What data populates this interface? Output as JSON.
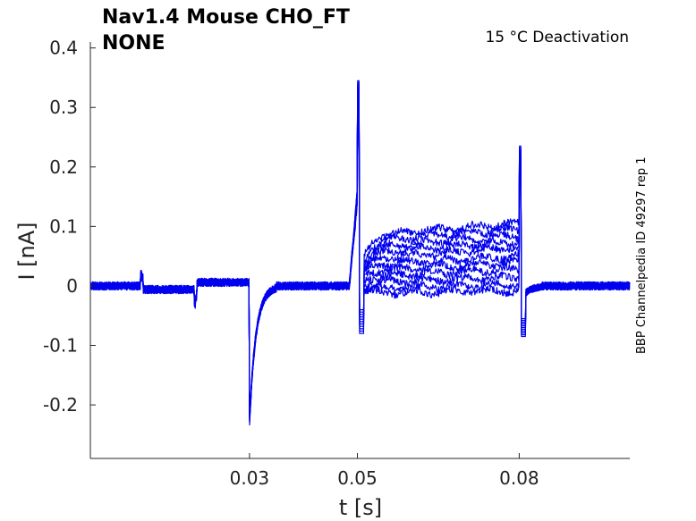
{
  "chart_data": {
    "type": "line",
    "title_line1": "Nav1.4  Mouse  CHO_FT",
    "title_line2": "NONE",
    "annotation": "15 °C  Deactivation",
    "side_label": "BBP Channelpedia ID 49297 rep 1",
    "xlabel": "t [s]",
    "ylabel": "I [nA]",
    "xlim": [
      0.0005,
      0.1005
    ],
    "ylim": [
      -0.29,
      0.41
    ],
    "x_ticks": [
      0.03,
      0.05,
      0.08
    ],
    "x_tick_labels": [
      "0.03",
      "0.05",
      "0.08"
    ],
    "y_ticks": [
      -0.2,
      -0.1,
      0,
      0.1,
      0.2,
      0.3,
      0.4
    ],
    "y_tick_labels": [
      "-0.2",
      "-0.1",
      "0",
      "0.1",
      "0.2",
      "0.3",
      "0.4"
    ],
    "grid": false,
    "line_color": "#0000ee",
    "protocol": {
      "baseline": 0.0,
      "transient_1": {
        "x": 0.01,
        "value": 0.02
      },
      "transient_2": {
        "x": 0.02,
        "value": -0.025
      },
      "capacitive_peak": {
        "x": 0.03,
        "min": -0.225,
        "recovery_end": 0.035
      },
      "step_start": {
        "x": 0.05,
        "pre_value": 0.16,
        "peak": 0.345,
        "undershoot": -0.08
      },
      "step_end": {
        "x": 0.08,
        "peak": 0.235,
        "undershoot": -0.085
      }
    },
    "series": [
      {
        "plateau_start": 0.085,
        "plateau_end": 0.105
      },
      {
        "plateau_start": 0.075,
        "plateau_end": 0.095
      },
      {
        "plateau_start": 0.065,
        "plateau_end": 0.085
      },
      {
        "plateau_start": 0.055,
        "plateau_end": 0.075
      },
      {
        "plateau_start": 0.045,
        "plateau_end": 0.065
      },
      {
        "plateau_start": 0.035,
        "plateau_end": 0.05
      },
      {
        "plateau_start": 0.025,
        "plateau_end": 0.04
      },
      {
        "plateau_start": 0.015,
        "plateau_end": 0.028
      },
      {
        "plateau_start": 0.005,
        "plateau_end": 0.015
      },
      {
        "plateau_start": -0.005,
        "plateau_end": 0.002
      },
      {
        "plateau_start": -0.012,
        "plateau_end": -0.008
      }
    ]
  }
}
